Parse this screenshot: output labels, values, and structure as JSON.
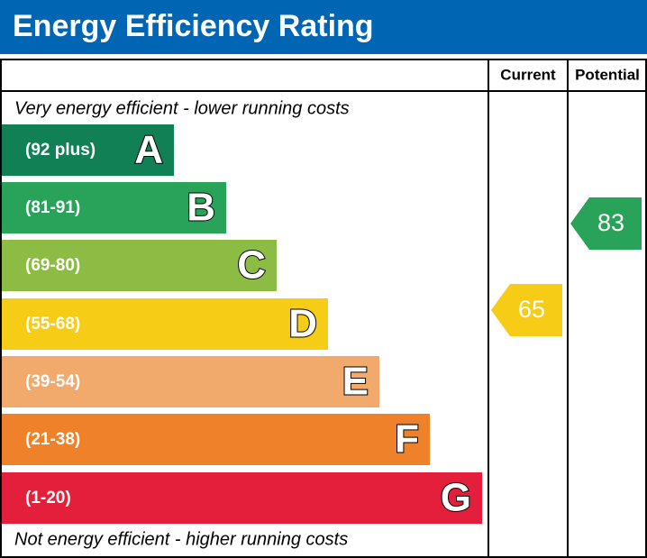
{
  "header": {
    "title": "Energy Efficiency Rating"
  },
  "columns": [
    "Current",
    "Potential"
  ],
  "top_note": "Very energy efficient - lower running costs",
  "bottom_note": "Not energy efficient - higher running costs",
  "bands": [
    {
      "range": "(92 plus)",
      "letter": "A",
      "color": "#128055"
    },
    {
      "range": "(81-91)",
      "letter": "B",
      "color": "#2aa35a"
    },
    {
      "range": "(69-80)",
      "letter": "C",
      "color": "#8dbc44"
    },
    {
      "range": "(55-68)",
      "letter": "D",
      "color": "#f6cc17"
    },
    {
      "range": "(39-54)",
      "letter": "E",
      "color": "#f1a96c"
    },
    {
      "range": "(21-38)",
      "letter": "F",
      "color": "#ee8129"
    },
    {
      "range": "(1-20)",
      "letter": "G",
      "color": "#e41f3c"
    }
  ],
  "current": {
    "value": 65,
    "color": "#f6cc17"
  },
  "potential": {
    "value": 83,
    "color": "#2aa35a"
  }
}
